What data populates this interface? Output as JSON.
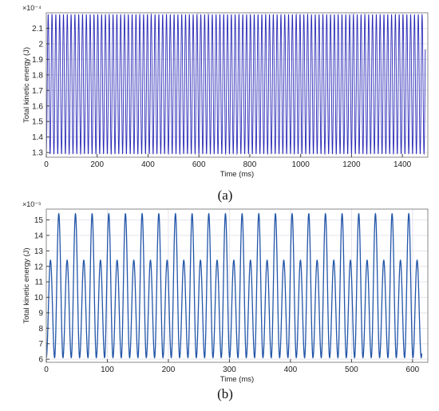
{
  "chart_data": [
    {
      "type": "line",
      "panel_label": "(a)",
      "xlabel": "Time (ms)",
      "ylabel": "Total kinetic energy (J)",
      "y_exponent_label": "×10⁻⁴",
      "xlim": [
        0,
        1500
      ],
      "ylim": [
        1.27,
        2.2
      ],
      "x_ticks": [
        "0",
        "200",
        "400",
        "600",
        "800",
        "1000",
        "1200",
        "1400"
      ],
      "y_ticks": [
        "1.3",
        "1.4",
        "1.5",
        "1.6",
        "1.7",
        "1.8",
        "1.9",
        "2",
        "2.1"
      ],
      "grid": true,
      "series": [
        {
          "color": "#2a2ab8",
          "waveform": "single-sinusoid",
          "peak": 2.19,
          "trough": 1.29,
          "period_ms": 15.0,
          "x_range": [
            0,
            1490
          ]
        }
      ]
    },
    {
      "type": "line",
      "panel_label": "(b)",
      "xlabel": "Time (ms)",
      "ylabel": "Total kinetic energy (J)",
      "y_exponent_label": "×10⁻⁵",
      "xlim": [
        0,
        625
      ],
      "ylim": [
        5.8,
        15.7
      ],
      "x_ticks": [
        "0",
        "100",
        "200",
        "300",
        "400",
        "500",
        "600"
      ],
      "y_ticks": [
        "6",
        "7",
        "8",
        "9",
        "10",
        "11",
        "12",
        "13",
        "14",
        "15"
      ],
      "grid": true,
      "series": [
        {
          "color": "#2255a8",
          "waveform": "alternating-double-peak",
          "high_peak": 15.4,
          "low_peak": 12.4,
          "trough": 6.1,
          "period_ms": 27.3,
          "x_range": [
            0,
            615
          ]
        }
      ]
    }
  ]
}
